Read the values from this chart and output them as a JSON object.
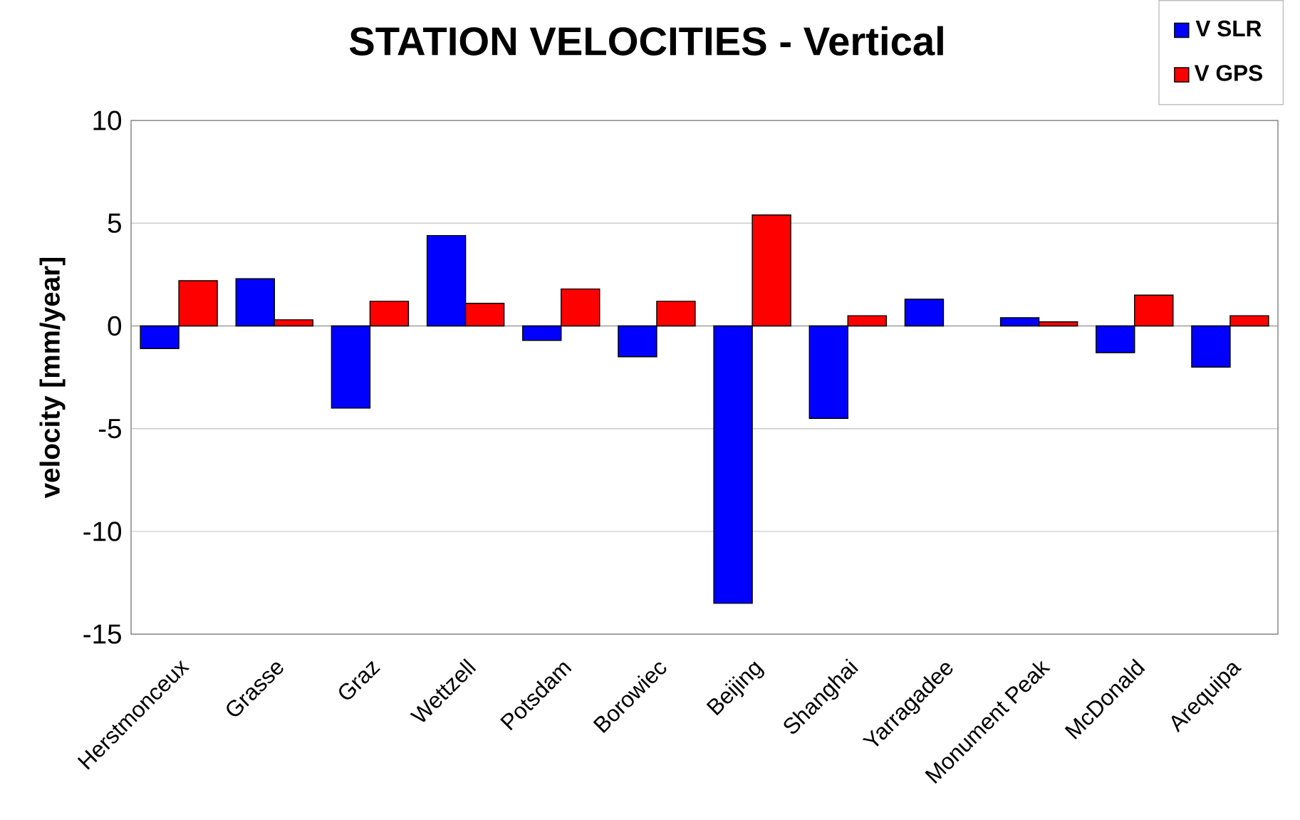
{
  "chart_data": {
    "type": "bar",
    "title": "STATION VELOCITIES - Vertical",
    "ylabel": "velocity [mm/year]",
    "categories": [
      "Herstmonceux",
      "Grasse",
      "Graz",
      "Wettzell",
      "Potsdam",
      "Borowiec",
      "Beijing",
      "Shanghai",
      "Yarragadee",
      "Monument Peak",
      "McDonald",
      "Arequipa"
    ],
    "series": [
      {
        "name": "V SLR",
        "color": "#0000ff",
        "values": [
          -1.1,
          2.3,
          -4.0,
          4.4,
          -0.7,
          -1.5,
          -13.5,
          -4.5,
          1.3,
          0.4,
          -1.3,
          -2.0
        ]
      },
      {
        "name": "V GPS",
        "color": "#ff0000",
        "values": [
          2.2,
          0.3,
          1.2,
          1.1,
          1.8,
          1.2,
          5.4,
          0.5,
          null,
          0.2,
          1.5,
          0.5
        ]
      }
    ],
    "ylim": [
      -15,
      10
    ],
    "yticks": [
      -15,
      -10,
      -5,
      0,
      5,
      10
    ],
    "grid": "y",
    "legend": "top right"
  }
}
